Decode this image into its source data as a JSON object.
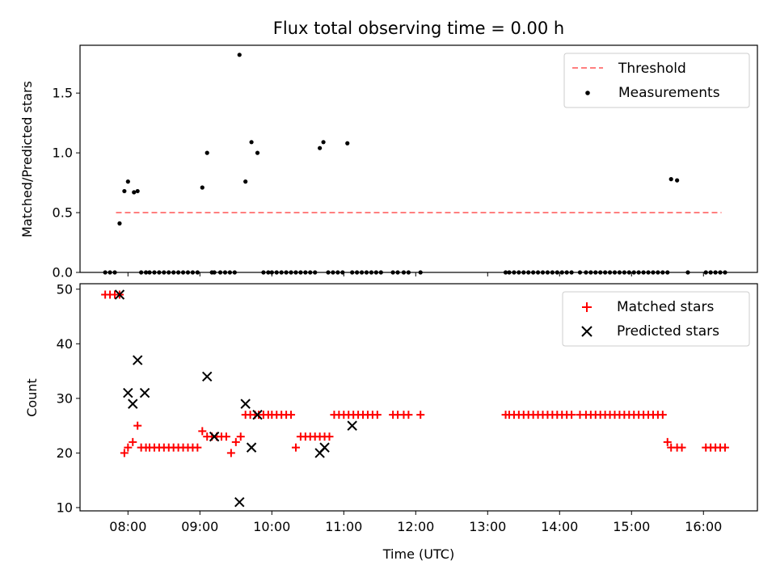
{
  "chart_data": [
    {
      "type": "scatter",
      "title": "Flux total observing time = 0.00 h",
      "xlabel": "",
      "ylabel": "Matched/Predicted stars",
      "ylim": [
        0,
        1.9
      ],
      "yticks": [
        0.0,
        0.5,
        1.0,
        1.5
      ],
      "ytick_labels": [
        "0.0",
        "0.5",
        "1.0",
        "1.5"
      ],
      "xlim": [
        "07:20",
        "16:45"
      ],
      "xticks": [
        "08:00",
        "09:00",
        "10:00",
        "11:00",
        "12:00",
        "13:00",
        "14:00",
        "15:00",
        "16:00"
      ],
      "grid": false,
      "legend_position": "top-right",
      "colors": {
        "threshold": "#ff7f7f",
        "measurements": "#000000"
      },
      "series": [
        {
          "name": "Threshold",
          "kind": "line",
          "style": "dashed",
          "x": [
            "07:50",
            "16:15"
          ],
          "y": [
            0.5,
            0.5
          ]
        },
        {
          "name": "Measurements",
          "kind": "points",
          "x": [
            "07:41",
            "07:45",
            "07:49",
            "07:53",
            "07:57",
            "08:00",
            "08:05",
            "08:08",
            "08:11",
            "08:15",
            "08:18",
            "08:22",
            "08:26",
            "08:30",
            "08:34",
            "08:38",
            "08:42",
            "08:46",
            "08:50",
            "08:54",
            "08:58",
            "09:02",
            "09:06",
            "09:10",
            "09:12",
            "09:17",
            "09:21",
            "09:25",
            "09:29",
            "09:33",
            "09:38",
            "09:43",
            "09:48",
            "09:53",
            "09:57",
            "10:00",
            "10:04",
            "10:08",
            "10:12",
            "10:16",
            "10:20",
            "10:24",
            "10:28",
            "10:32",
            "10:36",
            "10:40",
            "10:43",
            "10:47",
            "10:51",
            "10:55",
            "10:59",
            "11:03",
            "11:07",
            "11:11",
            "11:15",
            "11:19",
            "11:23",
            "11:27",
            "11:31",
            "11:41",
            "11:45",
            "11:50",
            "11:54",
            "12:04",
            "13:15",
            "13:18",
            "13:22",
            "13:26",
            "13:30",
            "13:34",
            "13:38",
            "13:42",
            "13:46",
            "13:50",
            "13:54",
            "13:58",
            "14:02",
            "14:06",
            "14:10",
            "14:17",
            "14:22",
            "14:26",
            "14:30",
            "14:34",
            "14:38",
            "14:42",
            "14:46",
            "14:50",
            "14:54",
            "14:58",
            "15:02",
            "15:06",
            "15:10",
            "15:14",
            "15:18",
            "15:22",
            "15:26",
            "15:30",
            "15:33",
            "15:38",
            "15:47",
            "16:02",
            "16:06",
            "16:10",
            "16:14",
            "16:18"
          ],
          "y": [
            0,
            0,
            0,
            0.41,
            0.68,
            0.76,
            0.67,
            0.68,
            0,
            0,
            0,
            0,
            0,
            0,
            0,
            0,
            0,
            0,
            0,
            0,
            0,
            0.71,
            1.0,
            0,
            0,
            0,
            0,
            0,
            0,
            1.82,
            0.76,
            1.09,
            1.0,
            0,
            0,
            0,
            0,
            0,
            0,
            0,
            0,
            0,
            0,
            0,
            0,
            1.04,
            1.09,
            0,
            0,
            0,
            0,
            1.08,
            0,
            0,
            0,
            0,
            0,
            0,
            0,
            0,
            0,
            0,
            0,
            0,
            0,
            0,
            0,
            0,
            0,
            0,
            0,
            0,
            0,
            0,
            0,
            0,
            0,
            0,
            0,
            0,
            0,
            0,
            0,
            0,
            0,
            0,
            0,
            0,
            0,
            0,
            0,
            0,
            0,
            0,
            0,
            0,
            0,
            0,
            0.78,
            0.77,
            0,
            0,
            0,
            0,
            0,
            0
          ]
        }
      ]
    },
    {
      "type": "scatter",
      "title": "",
      "xlabel": "Time (UTC)",
      "ylabel": "Count",
      "ylim": [
        9.4,
        51
      ],
      "yticks": [
        10,
        20,
        30,
        40,
        50
      ],
      "ytick_labels": [
        "10",
        "20",
        "30",
        "40",
        "50"
      ],
      "xlim": [
        "07:20",
        "16:45"
      ],
      "xticks": [
        "08:00",
        "09:00",
        "10:00",
        "11:00",
        "12:00",
        "13:00",
        "14:00",
        "15:00",
        "16:00"
      ],
      "xtick_labels": [
        "08:00",
        "09:00",
        "10:00",
        "11:00",
        "12:00",
        "13:00",
        "14:00",
        "15:00",
        "16:00"
      ],
      "grid": false,
      "legend_position": "top-right",
      "colors": {
        "matched": "#ff0000",
        "predicted": "#000000"
      },
      "series": [
        {
          "name": "Matched stars",
          "marker": "plus",
          "x": [
            "07:41",
            "07:45",
            "07:49",
            "07:53",
            "07:57",
            "08:00",
            "08:04",
            "08:08",
            "08:11",
            "08:15",
            "08:18",
            "08:22",
            "08:26",
            "08:30",
            "08:34",
            "08:38",
            "08:42",
            "08:46",
            "08:50",
            "08:54",
            "08:58",
            "09:02",
            "09:06",
            "09:10",
            "09:14",
            "09:18",
            "09:22",
            "09:26",
            "09:30",
            "09:34",
            "09:38",
            "09:42",
            "09:46",
            "09:49",
            "09:53",
            "09:57",
            "10:00",
            "10:04",
            "10:08",
            "10:12",
            "10:16",
            "10:20",
            "10:24",
            "10:28",
            "10:32",
            "10:36",
            "10:40",
            "10:44",
            "10:48",
            "10:52",
            "10:56",
            "11:00",
            "11:04",
            "11:08",
            "11:12",
            "11:16",
            "11:20",
            "11:24",
            "11:28",
            "11:41",
            "11:45",
            "11:50",
            "11:54",
            "12:04",
            "13:15",
            "13:18",
            "13:22",
            "13:26",
            "13:30",
            "13:34",
            "13:38",
            "13:42",
            "13:46",
            "13:50",
            "13:54",
            "13:58",
            "14:02",
            "14:06",
            "14:10",
            "14:17",
            "14:22",
            "14:26",
            "14:30",
            "14:34",
            "14:38",
            "14:42",
            "14:46",
            "14:50",
            "14:54",
            "14:58",
            "15:02",
            "15:06",
            "15:10",
            "15:14",
            "15:18",
            "15:22",
            "15:26",
            "15:30",
            "15:33",
            "15:38",
            "15:42",
            "16:02",
            "16:06",
            "16:10",
            "16:14",
            "16:18"
          ],
          "y": [
            49,
            49,
            49,
            49,
            20,
            21,
            22,
            25,
            21,
            21,
            21,
            21,
            21,
            21,
            21,
            21,
            21,
            21,
            21,
            21,
            21,
            24,
            23,
            23,
            23,
            23,
            23,
            20,
            22,
            23,
            27,
            27,
            27,
            27,
            27,
            27,
            27,
            27,
            27,
            27,
            27,
            21,
            23,
            23,
            23,
            23,
            23,
            23,
            23,
            27,
            27,
            27,
            27,
            27,
            27,
            27,
            27,
            27,
            27,
            27,
            27,
            27,
            27,
            27,
            27,
            27,
            27,
            27,
            27,
            27,
            27,
            27,
            27,
            27,
            27,
            27,
            27,
            27,
            27,
            27,
            27,
            27,
            27,
            27,
            27,
            27,
            27,
            27,
            27,
            27,
            27,
            27,
            27,
            27,
            27,
            27,
            27,
            22,
            21,
            21,
            21,
            21,
            21,
            21,
            21,
            21
          ]
        },
        {
          "name": "Predicted stars",
          "marker": "x",
          "x": [
            "07:53",
            "08:00",
            "08:04",
            "08:08",
            "08:14",
            "09:06",
            "09:12",
            "09:33",
            "09:38",
            "09:43",
            "09:48",
            "10:40",
            "10:44",
            "11:07"
          ],
          "y": [
            49,
            31,
            29,
            37,
            31,
            34,
            23,
            11,
            29,
            21,
            27,
            20,
            21,
            25
          ]
        }
      ]
    }
  ]
}
